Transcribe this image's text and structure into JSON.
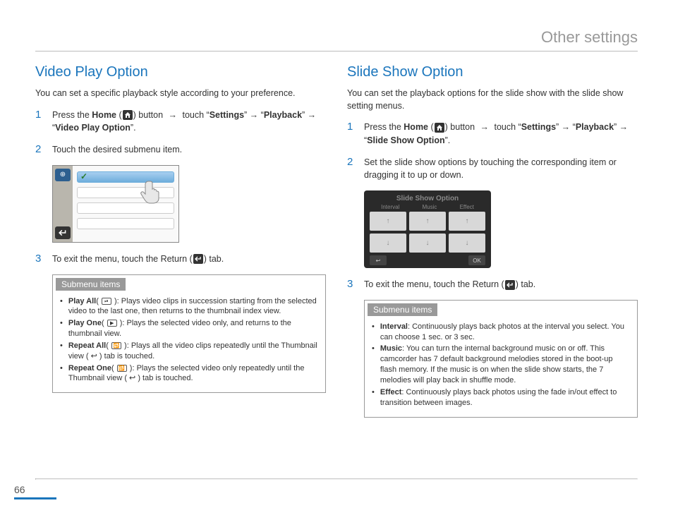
{
  "page": {
    "header_title": "Other settings",
    "page_number": "66"
  },
  "left": {
    "title": "Video Play Option",
    "intro": "You can set a specific playback style according to your preference.",
    "steps": {
      "s1_pre": "Press the ",
      "s1_home": "Home",
      "s1_button": " button ",
      "s1_touch": " touch “",
      "s1_settings": "Settings",
      "s1_arrow2": "” → “",
      "s1_playback": "Playback",
      "s1_arrow3": "” → “",
      "s1_vpo": "Video Play Option",
      "s1_end": "”.",
      "s2": "Touch the desired submenu item.",
      "s3_pre": "To exit the menu, touch the Return (",
      "s3_post": ") tab."
    },
    "submenu_title": "Submenu items",
    "submenu": [
      {
        "label": "Play All",
        "icon": "⏯",
        "desc": ": Plays video clips in succession starting from the selected video to the last one, then returns to the thumbnail index view."
      },
      {
        "label": "Play One",
        "icon": "▶",
        "desc": ": Plays the selected video only, and returns to the thumbnail view."
      },
      {
        "label": "Repeat All",
        "icon": "🔁",
        "desc": ": Plays all the video clips repeatedly until the Thumbnail view ( ↩ ) tab is touched."
      },
      {
        "label": "Repeat One",
        "icon": "🔂",
        "desc": ": Plays the selected video only repeatedly until the Thumbnail view ( ↩ ) tab is touched."
      }
    ]
  },
  "right": {
    "title": "Slide Show Option",
    "intro": "You can set the playback options for the slide show with the slide show setting menus.",
    "steps": {
      "s1_pre": "Press the ",
      "s1_home": "Home",
      "s1_button": " button ",
      "s1_touch": " touch “",
      "s1_settings": "Settings",
      "s1_arrow2": "” → “",
      "s1_playback": "Playback",
      "s1_arrow3": "” → “",
      "s1_sso": "Slide Show Option",
      "s1_end": "”.",
      "s2": "Set the slide show options by touching the corresponding item or dragging it to up or down.",
      "s3_pre": "To exit the menu, touch the Return (",
      "s3_post": ") tab."
    },
    "slide_ui": {
      "title": "Slide Show Option",
      "labels": [
        "Interval",
        "Music",
        "Effect"
      ],
      "ok": "OK"
    },
    "submenu_title": "Submenu items",
    "submenu": [
      {
        "label": "Interval",
        "desc": ": Continuously plays back photos at the interval you select. You can choose 1 sec. or 3 sec."
      },
      {
        "label": "Music",
        "desc": ": You can turn the internal background music on or off. This camcorder has 7 default background melodies stored in the boot-up flash memory. If the music is on when the slide show starts, the 7 melodies will play back in shuffle mode."
      },
      {
        "label": "Effect",
        "desc": ": Continuously plays back photos using the fade in/out effect to transition between images."
      }
    ]
  },
  "colors": {
    "accent": "#1a75bc",
    "muted": "#999999"
  }
}
